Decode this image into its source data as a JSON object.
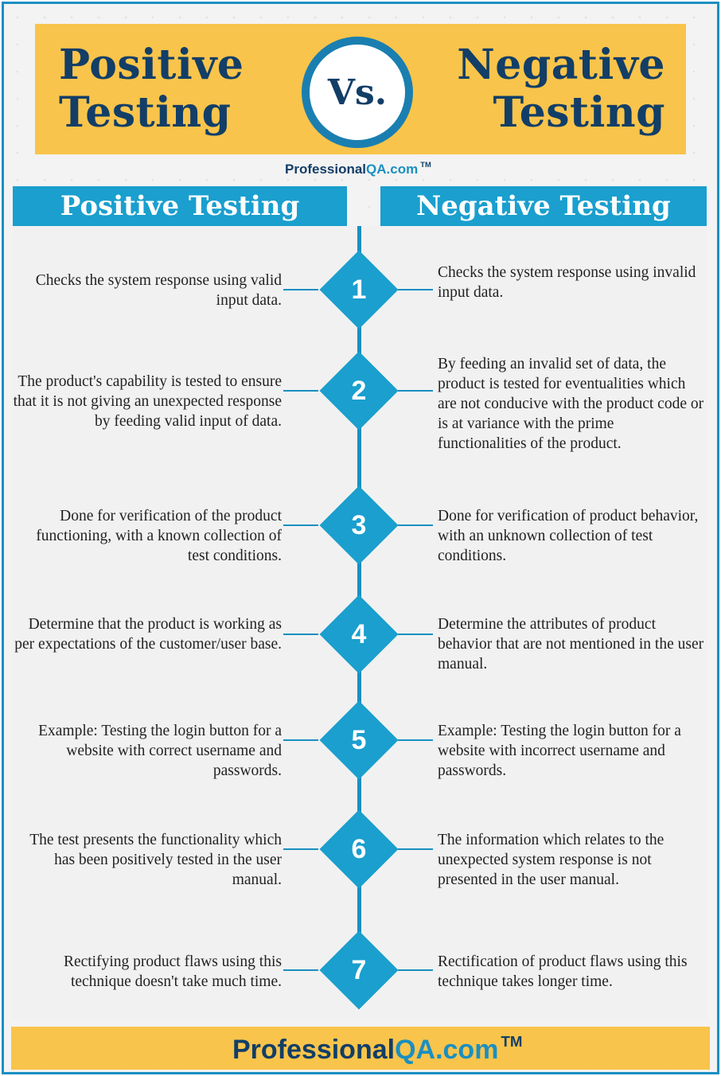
{
  "header": {
    "left_title": [
      "Positive",
      "Testing"
    ],
    "vs": "Vs.",
    "right_title": [
      "Negative",
      "Testing"
    ]
  },
  "brand": {
    "part1": "Professional",
    "part2": "QA.com",
    "tm": "TM"
  },
  "columns": {
    "left": "Positive Testing",
    "right": "Negative Testing"
  },
  "rows": [
    {
      "num": "1",
      "left": "Checks the system response using valid input data.",
      "right": "Checks the system response using invalid input data."
    },
    {
      "num": "2",
      "left": "The product's capability is tested to ensure that it is not giving an unexpected response by feeding valid input of data.",
      "right": "By feeding an invalid set of data, the product is tested for eventualities which are not conducive with the product code or is at variance with the prime functionalities of the product."
    },
    {
      "num": "3",
      "left": "Done for verification of the product functioning, with a known collection of test conditions.",
      "right": "Done for verification of product behavior, with an unknown collection of test conditions."
    },
    {
      "num": "4",
      "left": "Determine that the product is working as per expectations of the customer/user base.",
      "right": "Determine the attributes of product behavior that are not mentioned in the user manual."
    },
    {
      "num": "5",
      "left": "Example: Testing the login button for a website with correct username and passwords.",
      "right": "Example: Testing the login button for a website with incorrect username and passwords."
    },
    {
      "num": "6",
      "left": "The test presents the functionality which has been positively tested in the user manual.",
      "right": "The information which relates to the unexpected system response is not presented in the user manual."
    },
    {
      "num": "7",
      "left": "Rectifying product flaws using this technique doesn't take much time.",
      "right": "Rectification of product flaws using this technique takes longer time."
    }
  ],
  "colors": {
    "navy": "#123e67",
    "blue": "#1a9fce",
    "yellow": "#f9c44b"
  }
}
